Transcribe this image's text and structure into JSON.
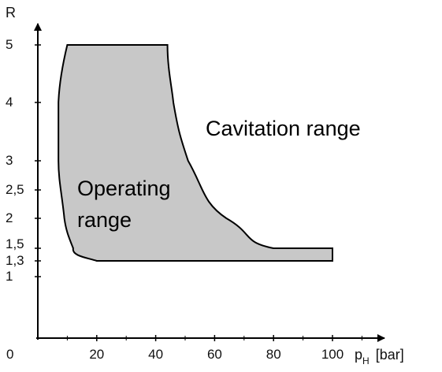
{
  "chart_data": {
    "type": "area",
    "title": "",
    "xlabel": {
      "main": "p",
      "sub": "H",
      "unit": "[bar]"
    },
    "ylabel": "R",
    "xlim": [
      0,
      120
    ],
    "x_ticks": [
      20,
      40,
      60,
      80,
      100
    ],
    "y_ticks": [
      "1",
      "1,3",
      "1,5",
      "2",
      "2,5",
      "3",
      "4",
      "5"
    ],
    "origin_label": "0",
    "fill_color": "#c8c8c8",
    "line_color": "#000000",
    "regions": [
      {
        "name": "Operating range",
        "lines": [
          "Operating",
          "range"
        ],
        "boundary": {
          "top": {
            "R": "5",
            "p_from": 10,
            "p_to": 44
          },
          "bottom": {
            "R": "1,3",
            "p_from": 20,
            "p_to": 100
          },
          "right_edge": {
            "p": 100,
            "R_from": "1,3",
            "R_to": "1,5"
          },
          "left_curve": [
            {
              "p": 10,
              "R": "5"
            },
            {
              "p": 7,
              "R": "4"
            },
            {
              "p": 7,
              "R": "3"
            },
            {
              "p": 9,
              "R": "2"
            },
            {
              "p": 12,
              "R": "1,5"
            },
            {
              "p": 20,
              "R": "1,3"
            }
          ],
          "right_curve": [
            {
              "p": 44,
              "R": "5"
            },
            {
              "p": 46,
              "R": "4"
            },
            {
              "p": 51,
              "R": "3"
            },
            {
              "p": 64,
              "R": "2"
            },
            {
              "p": 80,
              "R": "1,5"
            },
            {
              "p": 100,
              "R": "1,5"
            }
          ]
        }
      },
      {
        "name": "Cavitation range",
        "lines": [
          "Cavitation range"
        ]
      }
    ]
  }
}
